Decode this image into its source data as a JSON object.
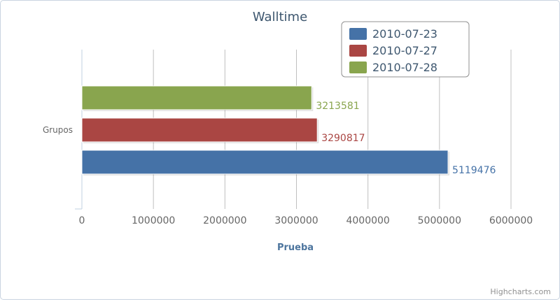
{
  "chart_data": {
    "type": "bar",
    "orientation": "horizontal",
    "title": "Walltime",
    "categories": [
      "Grupos"
    ],
    "xlabel": "Prueba",
    "ylabel": "",
    "xlim": [
      0,
      6000000
    ],
    "ticks": [
      0,
      1000000,
      2000000,
      3000000,
      4000000,
      5000000,
      6000000
    ],
    "tick_labels": [
      "0",
      "1000000",
      "2000000",
      "3000000",
      "4000000",
      "5000000",
      "6000000"
    ],
    "grid": true,
    "legend_position": "top-right",
    "series": [
      {
        "name": "2010-07-23",
        "color": "#4572a7",
        "values": [
          5119476
        ],
        "label": "5119476"
      },
      {
        "name": "2010-07-27",
        "color": "#aa4643",
        "values": [
          3290817
        ],
        "label": "3290817"
      },
      {
        "name": "2010-07-28",
        "color": "#89a54e",
        "values": [
          3213581
        ],
        "label": "3213581"
      }
    ]
  },
  "credits": "Highcharts.com"
}
